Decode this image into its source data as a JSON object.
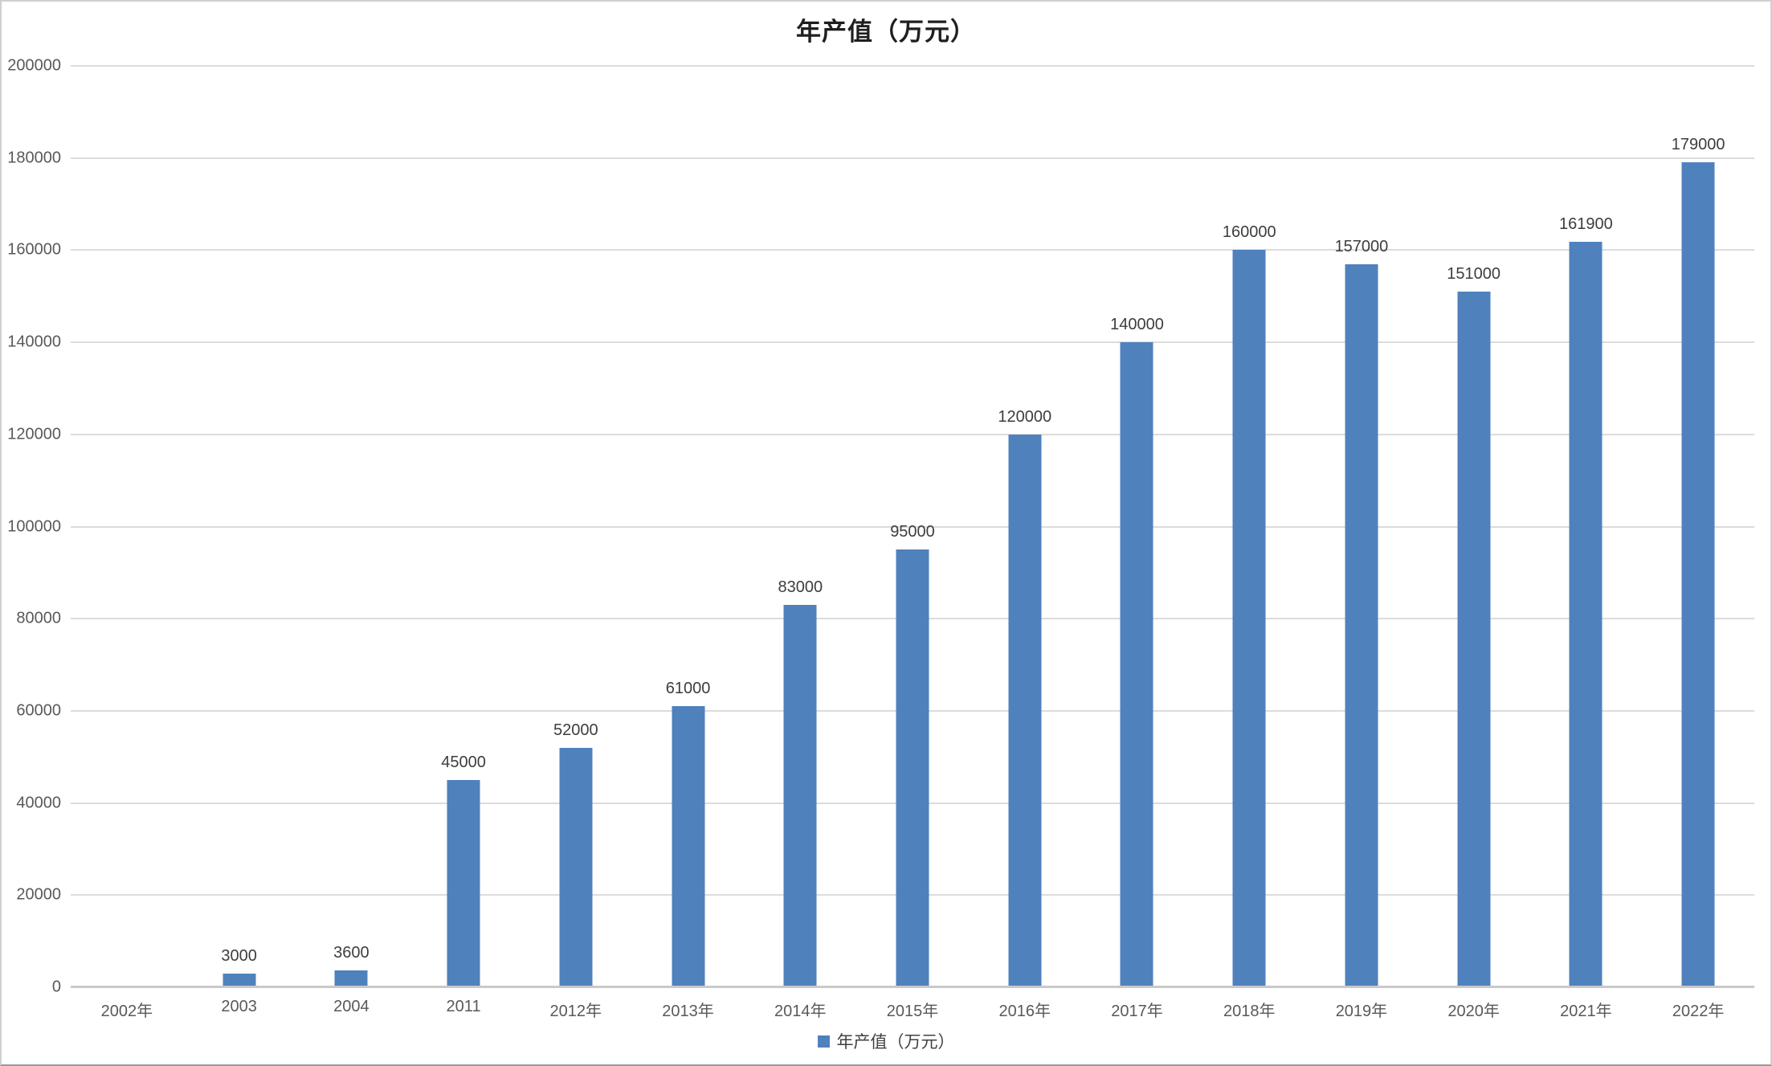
{
  "chart_data": {
    "type": "bar",
    "title": "年产值（万元）",
    "legend": "年产值（万元）",
    "legend_position": "bottom-center",
    "categories": [
      "2002年",
      "2003",
      "2004",
      "2011",
      "2012年",
      "2013年",
      "2014年",
      "2015年",
      "2016年",
      "2017年",
      "2018年",
      "2019年",
      "2020年",
      "2021年",
      "2022年"
    ],
    "values": [
      0,
      3000,
      3600,
      45000,
      52000,
      61000,
      83000,
      95000,
      120000,
      140000,
      160000,
      157000,
      151000,
      161900,
      179000
    ],
    "data_labels": [
      "",
      "3000",
      "3600",
      "45000",
      "52000",
      "61000",
      "83000",
      "95000",
      "120000",
      "140000",
      "160000",
      "157000",
      "151000",
      "161900",
      "179000"
    ],
    "xlabel": "",
    "ylabel": "",
    "ylim": [
      0,
      200000
    ],
    "ytick_step": 20000,
    "ytick_labels": [
      "0",
      "20000",
      "40000",
      "60000",
      "80000",
      "100000",
      "120000",
      "140000",
      "160000",
      "180000",
      "200000"
    ],
    "grid": "horizontal",
    "colors": {
      "bar": "#4f81bd",
      "gridline": "#dcdcdc",
      "axis_line": "#c9c9c9",
      "axis_text": "#595959",
      "data_label_text": "#3d3d3d"
    }
  }
}
